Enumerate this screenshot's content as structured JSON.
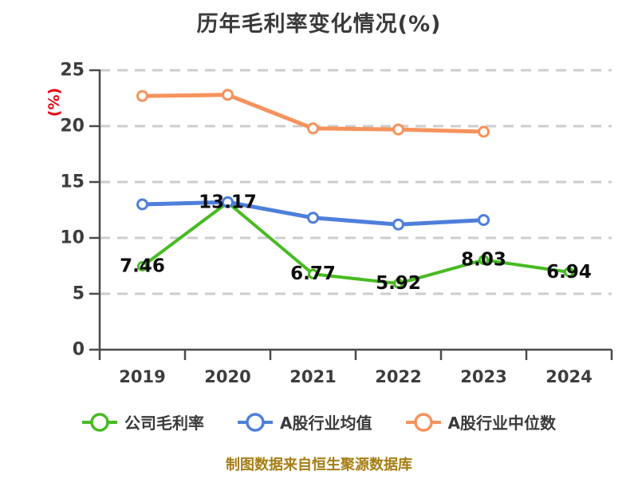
{
  "page": {
    "background": "#ffffff",
    "footer": "制图数据来自恒生聚源数据库",
    "footer_color": "#a57e14"
  },
  "chart_data": {
    "type": "line",
    "title": "历年毛利率变化情况(%)",
    "title_color": "#3a3a3a",
    "ylabel": "(%)",
    "ylabel_color": "#e60012",
    "xlabel": "",
    "categories": [
      "2019",
      "2020",
      "2021",
      "2022",
      "2023",
      "2024"
    ],
    "ylim": [
      0,
      25
    ],
    "yticks": [
      0,
      5,
      10,
      15,
      20,
      25
    ],
    "grid": "horizontal-dashed",
    "grid_color": "#cdcdcd",
    "axis_color": "#4a4a4a",
    "tick_label_color": "#3d3d3d",
    "data_label_color": "#0d0d0d",
    "legend_position": "bottom",
    "series": [
      {
        "key": "company-gross-margin",
        "name": "公司毛利率",
        "color": "#47bb22",
        "values": [
          7.46,
          13.17,
          6.77,
          5.92,
          8.03,
          6.94
        ],
        "labels": [
          "7.46",
          "13.17",
          "6.77",
          "5.92",
          "8.03",
          "6.94"
        ],
        "point_labels": true
      },
      {
        "key": "a-share-industry-average",
        "name": "A股行业均值",
        "color": "#4d7fdb",
        "values": [
          13.0,
          13.2,
          11.8,
          11.2,
          11.6,
          null
        ],
        "point_labels": false
      },
      {
        "key": "a-share-industry-median",
        "name": "A股行业中位数",
        "color": "#f5935c",
        "values": [
          22.7,
          22.8,
          19.8,
          19.7,
          19.5,
          null
        ],
        "point_labels": false
      }
    ]
  }
}
